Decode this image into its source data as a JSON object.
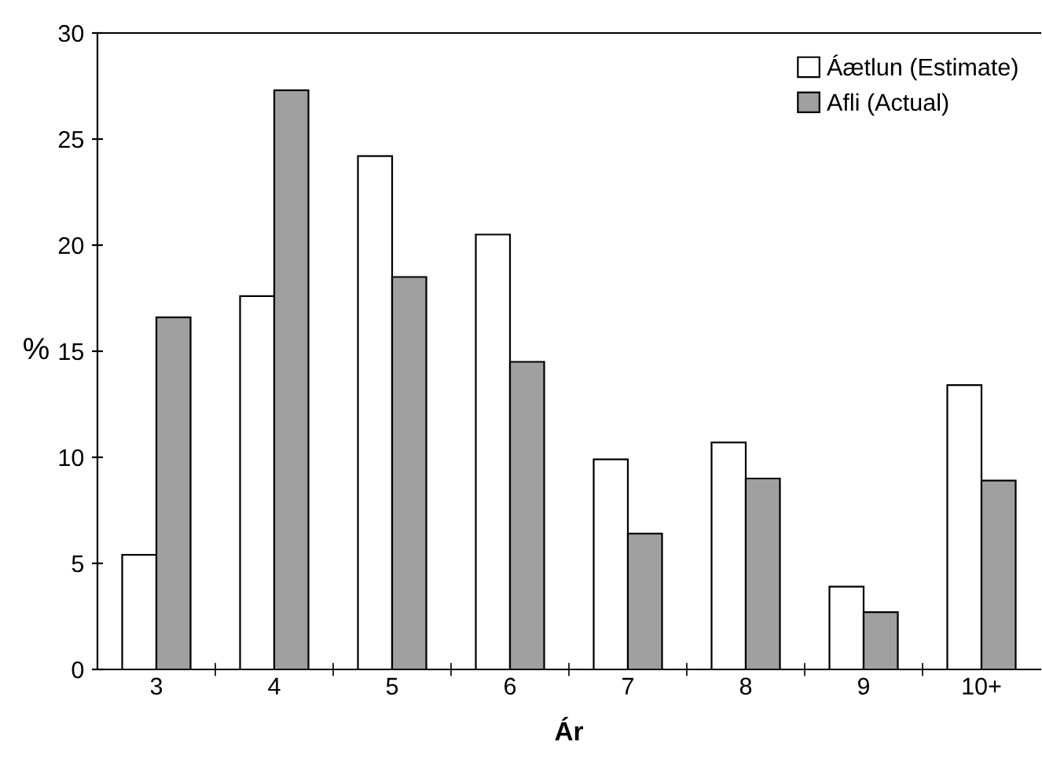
{
  "chart_data": {
    "type": "bar",
    "xlabel": "Ár",
    "ylabel": "%",
    "categories": [
      "3",
      "4",
      "5",
      "6",
      "7",
      "8",
      "9",
      "10+"
    ],
    "series": [
      {
        "name": "Áætlun (Estimate)",
        "color": "#ffffff",
        "values": [
          5.4,
          17.6,
          24.2,
          20.5,
          9.9,
          10.7,
          3.9,
          13.4
        ]
      },
      {
        "name": "Afli (Actual)",
        "color": "#a0a0a0",
        "values": [
          16.6,
          27.3,
          18.5,
          14.5,
          6.4,
          9.0,
          2.7,
          8.9
        ]
      }
    ],
    "ylim": [
      0,
      30
    ],
    "yticks": [
      0,
      5,
      10,
      15,
      20,
      25,
      30
    ],
    "grid": false,
    "legend": "top right"
  }
}
